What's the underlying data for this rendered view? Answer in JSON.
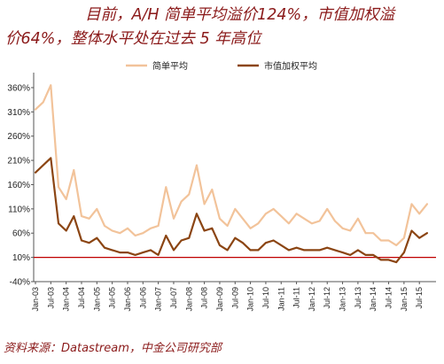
{
  "headline": {
    "line1": "目前，A/H 简单平均溢价124%，市值加权溢",
    "line2": "价64%，整体水平处在过去 5 年高位"
  },
  "source": "资料来源：Datastream，中金公司研究部",
  "colors": {
    "simple": "#f2c39a",
    "weighted": "#8b4513",
    "baseline": "#c00000"
  },
  "chart_data": {
    "type": "line",
    "ylim": [
      -40,
      380
    ],
    "y_ticks": [
      360,
      310,
      260,
      210,
      160,
      110,
      60,
      10,
      -40
    ],
    "y_tick_labels": [
      "360%",
      "310%",
      "260%",
      "210%",
      "160%",
      "110%",
      "60%",
      "10%",
      "-40%"
    ],
    "y_unit": "%",
    "x_tick_labels": [
      "Jan-03",
      "Jul-03",
      "Jan-04",
      "Jul-04",
      "Jan-05",
      "Jul-05",
      "Jan-06",
      "Jul-06",
      "Jan-07",
      "Jul-07",
      "Jan-08",
      "Jul-08",
      "Jan-09",
      "Jul-09",
      "Jan-10",
      "Jul-10",
      "Jan-11",
      "Jul-11",
      "Jan-12",
      "Jul-12",
      "Jan-13",
      "Jul-13",
      "Jan-14",
      "Jul-14",
      "Jan-15",
      "Jul-15"
    ],
    "baseline": 10,
    "legend": {
      "position": "top"
    },
    "series": [
      {
        "name": "简单平均",
        "x": [
          "Jan-03",
          "Apr-03",
          "Jul-03",
          "Oct-03",
          "Jan-04",
          "Apr-04",
          "Jul-04",
          "Oct-04",
          "Jan-05",
          "Apr-05",
          "Jul-05",
          "Oct-05",
          "Jan-06",
          "Apr-06",
          "Jul-06",
          "Oct-06",
          "Jan-07",
          "Apr-07",
          "Jul-07",
          "Oct-07",
          "Jan-08",
          "Apr-08",
          "Jul-08",
          "Oct-08",
          "Jan-09",
          "Apr-09",
          "Jul-09",
          "Oct-09",
          "Jan-10",
          "Apr-10",
          "Jul-10",
          "Oct-10",
          "Jan-11",
          "Apr-11",
          "Jul-11",
          "Oct-11",
          "Jan-12",
          "Apr-12",
          "Jul-12",
          "Oct-12",
          "Jan-13",
          "Apr-13",
          "Jul-13",
          "Oct-13",
          "Jan-14",
          "Apr-14",
          "Jul-14",
          "Oct-14",
          "Jan-15",
          "Apr-15",
          "Jul-15",
          "Oct-15"
        ],
        "values": [
          315,
          330,
          365,
          155,
          130,
          190,
          95,
          90,
          110,
          75,
          65,
          60,
          70,
          55,
          60,
          70,
          75,
          155,
          90,
          125,
          140,
          200,
          120,
          150,
          90,
          75,
          110,
          90,
          70,
          80,
          100,
          110,
          95,
          80,
          100,
          90,
          80,
          85,
          110,
          85,
          70,
          65,
          90,
          60,
          60,
          45,
          45,
          35,
          50,
          120,
          100,
          120
        ]
      },
      {
        "name": "市值加权平均",
        "x": [
          "Jan-03",
          "Apr-03",
          "Jul-03",
          "Oct-03",
          "Jan-04",
          "Apr-04",
          "Jul-04",
          "Oct-04",
          "Jan-05",
          "Apr-05",
          "Jul-05",
          "Oct-05",
          "Jan-06",
          "Apr-06",
          "Jul-06",
          "Oct-06",
          "Jan-07",
          "Apr-07",
          "Jul-07",
          "Oct-07",
          "Jan-08",
          "Apr-08",
          "Jul-08",
          "Oct-08",
          "Jan-09",
          "Apr-09",
          "Jul-09",
          "Oct-09",
          "Jan-10",
          "Apr-10",
          "Jul-10",
          "Oct-10",
          "Jan-11",
          "Apr-11",
          "Jul-11",
          "Oct-11",
          "Jan-12",
          "Apr-12",
          "Jul-12",
          "Oct-12",
          "Jan-13",
          "Apr-13",
          "Jul-13",
          "Oct-13",
          "Jan-14",
          "Apr-14",
          "Jul-14",
          "Oct-14",
          "Jan-15",
          "Apr-15",
          "Jul-15",
          "Oct-15"
        ],
        "values": [
          185,
          200,
          215,
          80,
          65,
          95,
          45,
          40,
          50,
          30,
          25,
          20,
          20,
          15,
          20,
          25,
          15,
          55,
          25,
          45,
          50,
          100,
          65,
          70,
          35,
          25,
          50,
          40,
          25,
          25,
          40,
          45,
          35,
          25,
          30,
          25,
          25,
          25,
          30,
          25,
          20,
          15,
          25,
          15,
          15,
          5,
          5,
          0,
          20,
          65,
          50,
          60
        ]
      }
    ]
  }
}
